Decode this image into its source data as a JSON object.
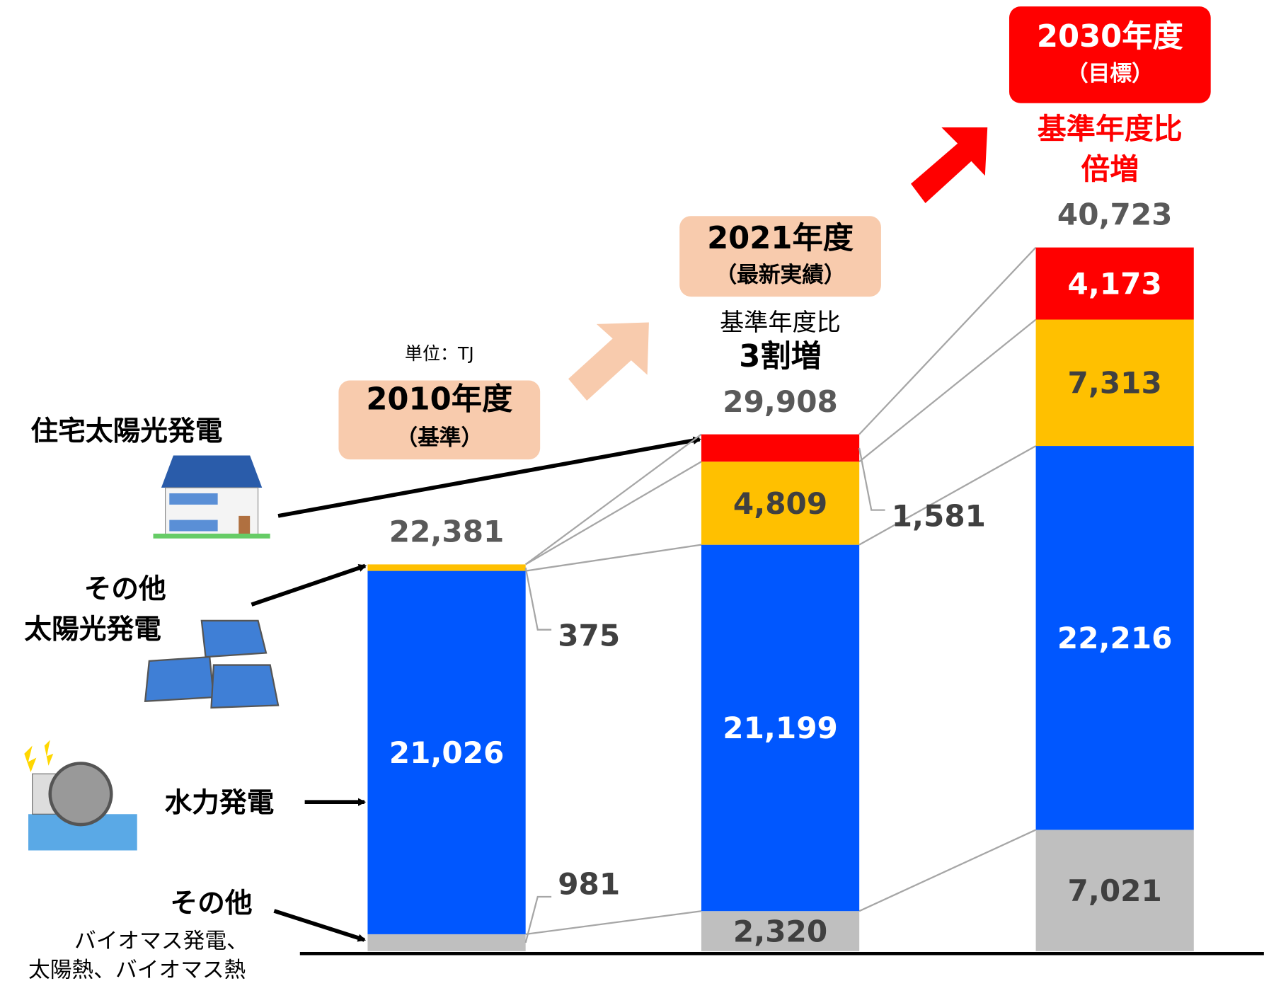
{
  "chart_data": {
    "type": "stacked-bar",
    "unit": "単位：TJ",
    "categories": [
      "2010年度",
      "2021年度",
      "2030年度"
    ],
    "category_notes": [
      "（基準）",
      "（最新実績）",
      "（目標）"
    ],
    "series": [
      {
        "name": [
          "その他"
        ],
        "note": [
          "バイオマス発電、",
          "太陽熱、バイオマス熱"
        ],
        "color": "#bfbfbf",
        "label_color": "#404040",
        "values": [
          981,
          2320,
          7021
        ],
        "value_labels": [
          "981",
          "2,320",
          "7,021"
        ]
      },
      {
        "name": [
          "水力発電"
        ],
        "color": "#0057ff",
        "label_color": "#ffffff",
        "values": [
          21026,
          21199,
          22216
        ],
        "value_labels": [
          "21,026",
          "21,199",
          "22,216"
        ]
      },
      {
        "name": [
          "その他",
          "太陽光発電"
        ],
        "color": "#ffc000",
        "label_color": "#404040",
        "values": [
          375,
          4809,
          7313
        ],
        "value_labels": [
          "375",
          "4,809",
          "7,313"
        ]
      },
      {
        "name": [
          "住宅太陽光発電"
        ],
        "color": "#ff0000",
        "label_color": "#ffffff",
        "values": [
          null,
          1581,
          4173
        ],
        "value_labels": [
          null,
          "1,581",
          "4,173"
        ]
      }
    ],
    "totals": [
      22381,
      29908,
      40723
    ],
    "total_labels": [
      "22,381",
      "29,908",
      "40,723"
    ],
    "annotations": [
      {
        "lines": [
          "基準年度比",
          "3割増"
        ]
      },
      {
        "lines": [
          "基準年度比",
          "倍増"
        ]
      }
    ]
  }
}
